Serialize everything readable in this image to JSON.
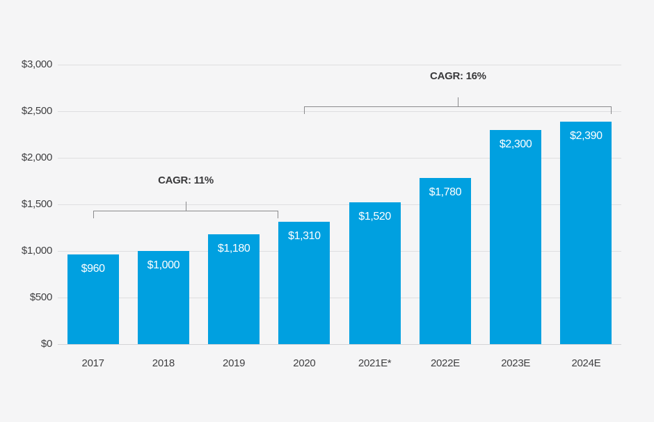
{
  "chart_data": {
    "type": "bar",
    "title": "",
    "xlabel": "",
    "ylabel": "",
    "categories": [
      "2017",
      "2018",
      "2019",
      "2020",
      "2021E*",
      "2022E",
      "2023E",
      "2024E"
    ],
    "values": [
      960,
      1000,
      1180,
      1310,
      1520,
      1780,
      2300,
      2390
    ],
    "bar_labels": [
      "$960",
      "$1,000",
      "$1,180",
      "$1,310",
      "$1,520",
      "$1,780",
      "$2,300",
      "$2,390"
    ],
    "y_axis": {
      "range": [
        0,
        3000
      ],
      "tick_values": [
        0,
        500,
        1000,
        1500,
        2000,
        2500,
        3000
      ],
      "tick_labels": [
        "$0",
        "$500",
        "$1,000",
        "$1,500",
        "$2,000",
        "$2,500",
        "$3,000"
      ]
    },
    "grid": "horizontal-on",
    "legend": "none",
    "annotations": [
      {
        "label": "CAGR: 11%",
        "start_index": 0,
        "start_anchor": "center",
        "end_index": 3,
        "end_anchor": "left"
      },
      {
        "label": "CAGR: 16%",
        "start_index": 3,
        "start_anchor": "center",
        "end_index": 7,
        "end_anchor": "right"
      }
    ],
    "colors": {
      "bar": "#00A0E0",
      "background": "#F5F5F6",
      "gridline": "#DEDEE0",
      "axis_text": "#3F3F41",
      "bar_label_text": "#FFFFFF",
      "bracket_line": "#8A8A8C",
      "annotation_text": "#39393B"
    }
  }
}
